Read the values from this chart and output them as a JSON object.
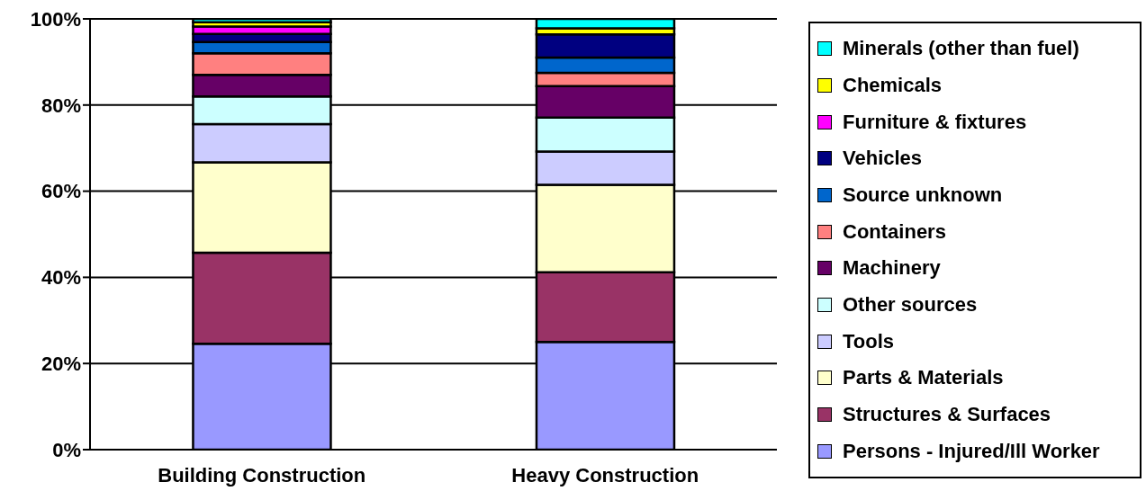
{
  "chart_data": {
    "type": "bar",
    "stacked": true,
    "categories": [
      "Building Construction",
      "Heavy Construction"
    ],
    "series": [
      {
        "name": "Persons - Injured/Ill Worker",
        "color": "#9999ff",
        "values": [
          24.6,
          25.0
        ]
      },
      {
        "name": "Structures & Surfaces",
        "color": "#993366",
        "values": [
          21.1,
          16.2
        ]
      },
      {
        "name": "Parts & Materials",
        "color": "#ffffcc",
        "values": [
          21.0,
          20.3
        ]
      },
      {
        "name": "Tools",
        "color": "#ccccff",
        "values": [
          8.9,
          7.7
        ]
      },
      {
        "name": "Other sources",
        "color": "#ccffff",
        "values": [
          6.4,
          7.9
        ]
      },
      {
        "name": "Machinery",
        "color": "#660066",
        "values": [
          5.0,
          7.3
        ]
      },
      {
        "name": "Containers",
        "color": "#ff8080",
        "values": [
          5.0,
          3.1
        ]
      },
      {
        "name": "Source unknown",
        "color": "#0066cc",
        "values": [
          2.6,
          3.5
        ]
      },
      {
        "name": "Vehicles",
        "color": "#000080",
        "values": [
          1.9,
          5.4
        ]
      },
      {
        "name": "Furniture & fixtures",
        "color": "#ff00ff",
        "values": [
          1.7,
          null
        ]
      },
      {
        "name": "Chemicals",
        "color": "#ffff00",
        "values": [
          1.0,
          1.4
        ]
      },
      {
        "name": "Minerals (other than fuel)",
        "color": "#00ffff",
        "values": [
          0.8,
          2.2
        ]
      }
    ],
    "ylim": [
      0,
      100
    ],
    "yticks": [
      {
        "value": 0,
        "label": "0%"
      },
      {
        "value": 20,
        "label": "20%"
      },
      {
        "value": 40,
        "label": "40%"
      },
      {
        "value": 60,
        "label": "60%"
      },
      {
        "value": 80,
        "label": "80%"
      },
      {
        "value": 100,
        "label": "100%"
      }
    ],
    "grid": "y",
    "legend": "right"
  }
}
